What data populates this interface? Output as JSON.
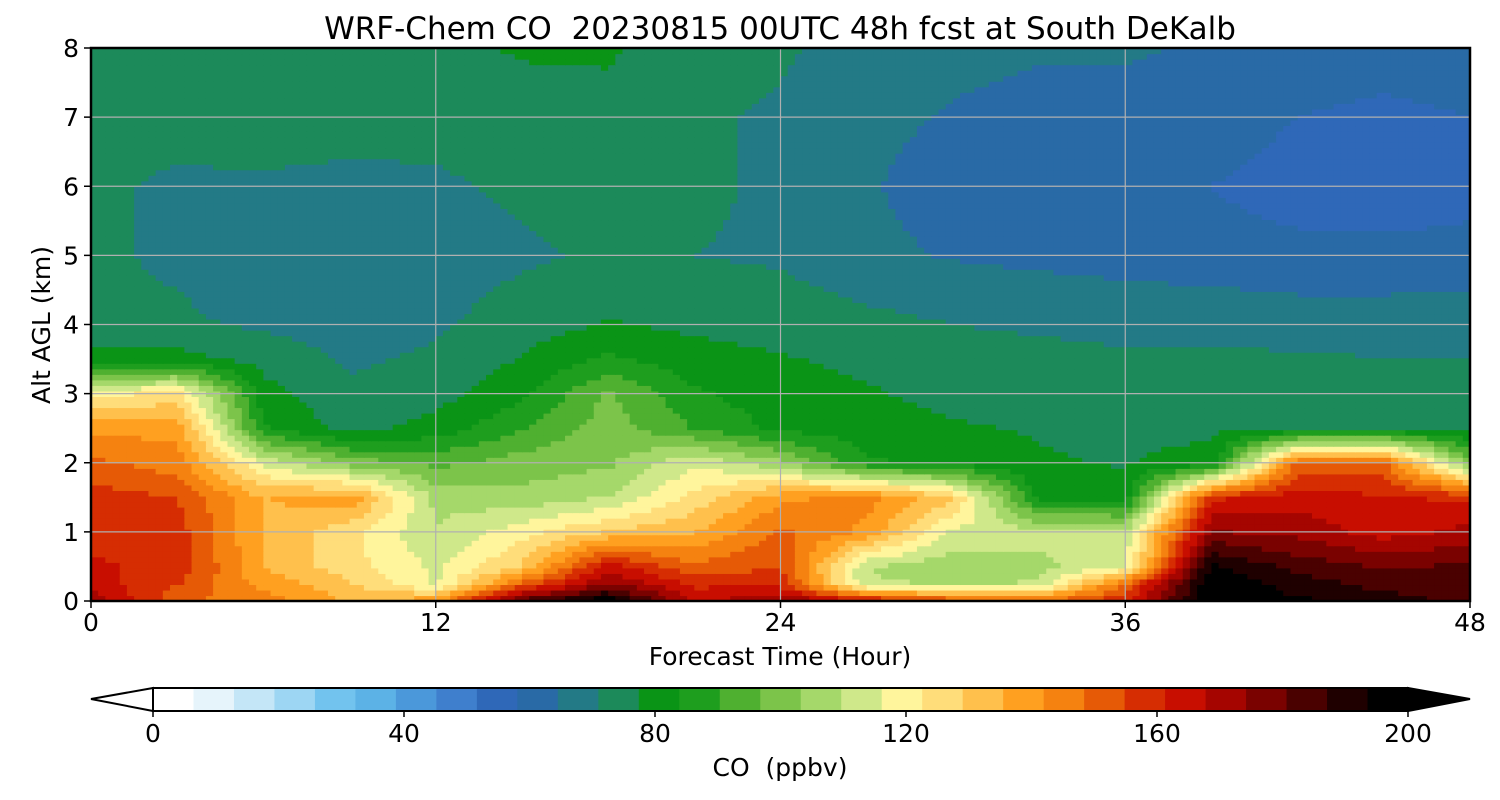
{
  "chart_data": {
    "type": "heatmap",
    "subtype": "filled-contour time-height cross section",
    "title": "WRF-Chem CO  20230815 00UTC 48h fcst at South DeKalb",
    "xlabel": "Forecast Time (Hour)",
    "ylabel": "Alt AGL (km)",
    "xlim": [
      0,
      48
    ],
    "ylim": [
      0,
      8
    ],
    "xticks": [
      0,
      12,
      24,
      36,
      48
    ],
    "yticks": [
      0,
      1,
      2,
      3,
      4,
      5,
      6,
      7,
      8
    ],
    "grid": true,
    "x": [
      0,
      3,
      6,
      9,
      12,
      15,
      18,
      21,
      24,
      27,
      30,
      33,
      36,
      39,
      42,
      45,
      48
    ],
    "y": [
      0,
      0.25,
      0.5,
      1,
      1.5,
      2,
      2.5,
      3,
      3.5,
      4,
      5,
      6,
      7,
      8
    ],
    "values": [
      [
        172,
        150,
        145,
        135,
        140,
        185,
        200,
        165,
        175,
        165,
        155,
        150,
        160,
        200,
        195,
        190,
        185
      ],
      [
        165,
        155,
        140,
        130,
        115,
        150,
        175,
        160,
        160,
        110,
        110,
        110,
        150,
        200,
        190,
        185,
        185
      ],
      [
        162,
        160,
        135,
        125,
        115,
        130,
        165,
        150,
        155,
        110,
        105,
        108,
        115,
        195,
        185,
        180,
        182
      ],
      [
        160,
        158,
        135,
        125,
        110,
        120,
        130,
        135,
        150,
        140,
        115,
        112,
        112,
        175,
        172,
        165,
        170
      ],
      [
        158,
        155,
        135,
        140,
        108,
        105,
        110,
        125,
        140,
        145,
        130,
        82,
        80,
        160,
        165,
        162,
        160
      ],
      [
        150,
        145,
        115,
        100,
        95,
        100,
        102,
        115,
        105,
        85,
        82,
        78,
        77,
        80,
        150,
        150,
        100
      ],
      [
        140,
        140,
        85,
        75,
        80,
        90,
        100,
        90,
        82,
        80,
        78,
        77,
        76,
        76,
        77,
        77,
        76
      ],
      [
        120,
        125,
        80,
        72,
        75,
        82,
        98,
        85,
        80,
        78,
        76,
        75,
        74,
        74,
        74,
        74,
        74
      ],
      [
        80,
        80,
        75,
        70,
        72,
        78,
        85,
        80,
        78,
        76,
        74,
        73,
        72,
        72,
        72,
        71,
        71
      ],
      [
        72,
        72,
        70,
        68,
        70,
        74,
        78,
        76,
        75,
        73,
        71,
        70,
        69,
        69,
        68,
        68,
        68
      ],
      [
        72,
        70,
        67,
        66,
        68,
        70,
        72,
        71,
        70,
        66,
        64,
        63,
        62,
        61,
        60,
        60,
        61
      ],
      [
        72,
        70,
        70,
        69,
        70,
        72,
        73,
        72,
        70,
        65,
        62,
        61,
        60,
        58,
        55,
        54,
        55
      ],
      [
        72,
        73,
        74,
        74,
        73,
        75,
        76,
        72,
        70,
        66,
        64,
        63,
        63,
        62,
        58,
        56,
        58
      ],
      [
        74,
        76,
        77,
        77,
        76,
        78,
        78,
        74,
        72,
        68,
        66,
        65,
        65,
        64,
        63,
        62,
        64
      ]
    ],
    "colorbar": {
      "label": "CO  (ppbv)",
      "min": 0,
      "max": 200,
      "ticks": [
        0,
        40,
        80,
        120,
        160,
        200
      ],
      "extend": "both",
      "colors": [
        "#ffffff",
        "#e6f4fb",
        "#c4e6f7",
        "#9dd6f3",
        "#72c3ee",
        "#5cb2e6",
        "#4b98da",
        "#3f7fcd",
        "#2f68b8",
        "#296aa6",
        "#237a86",
        "#1c8a5a",
        "#0a9416",
        "#1e9e1e",
        "#4fb030",
        "#7cc44a",
        "#a5d86a",
        "#cfe88a",
        "#fff59c",
        "#ffdd7a",
        "#ffc04c",
        "#ffa020",
        "#f58210",
        "#e65a06",
        "#d62d02",
        "#c80e00",
        "#a50500",
        "#7a0200",
        "#4a0100",
        "#1f0000",
        "#000000"
      ]
    }
  }
}
